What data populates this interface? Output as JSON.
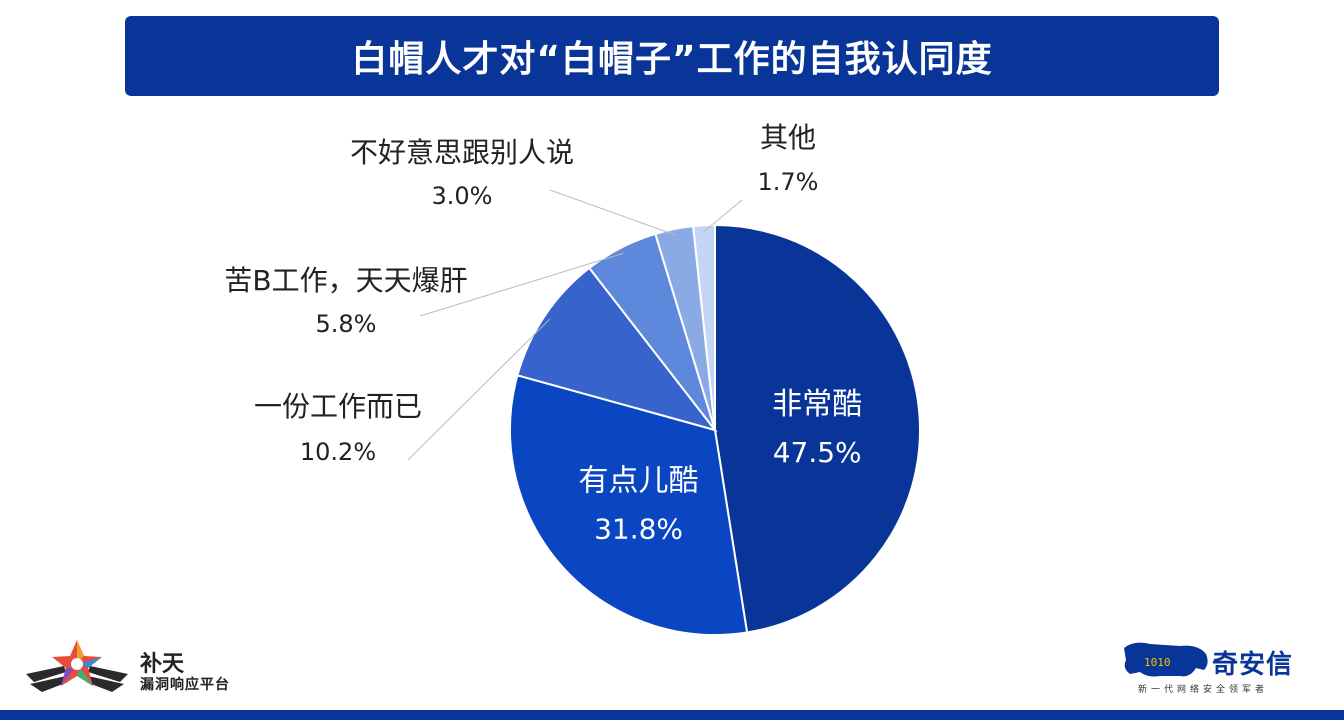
{
  "title": "白帽人才对“白帽子”工作的自我认同度",
  "chart_data": {
    "type": "pie",
    "title": "",
    "slices": [
      {
        "label": "非常酷",
        "value_text": "47.5%",
        "value": 47.5,
        "color": "#0a3598",
        "label_position": "inside"
      },
      {
        "label": "有点儿酷",
        "value_text": "31.8%",
        "value": 31.8,
        "color": "#0a45c2",
        "label_position": "inside"
      },
      {
        "label": "一份工作而已",
        "value_text": "10.2%",
        "value": 10.2,
        "color": "#3763cc",
        "label_position": "outside"
      },
      {
        "label": "苦B工作，天天爆肝",
        "value_text": "5.8%",
        "value": 5.8,
        "color": "#5e88db",
        "label_position": "outside"
      },
      {
        "label": "不好意思跟别人说",
        "value_text": "3.0%",
        "value": 3.0,
        "color": "#8aaae6",
        "label_position": "outside"
      },
      {
        "label": "其他",
        "value_text": "1.7%",
        "value": 1.7,
        "color": "#c4d6f6",
        "label_position": "outside"
      }
    ]
  },
  "logo_left": {
    "name": "补天",
    "sub": "漏洞响应平台",
    "icon": "star-wings-logo"
  },
  "logo_right": {
    "name": "奇安信",
    "sub": "新一代网络安全领军者",
    "icon": "leopard-logo",
    "graphic_text": "1010"
  },
  "colors": {
    "brand": "#0a3598",
    "leader_line": "#bbbbbb",
    "label_text": "#222222"
  }
}
